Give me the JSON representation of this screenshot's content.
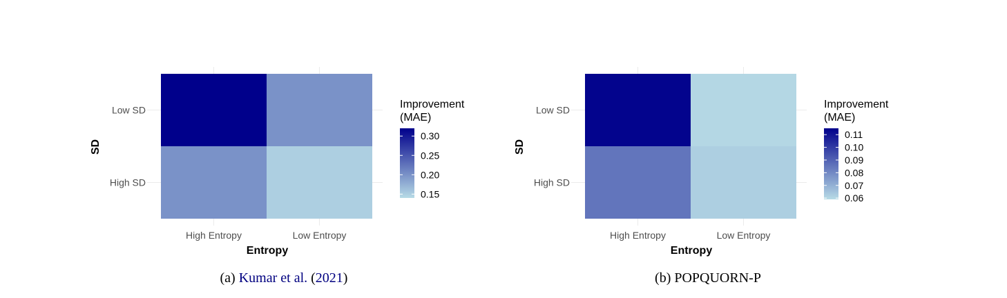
{
  "chart_data": [
    {
      "type": "heatmap",
      "caption": {
        "prefix": "(a) ",
        "author": "Kumar et al.",
        "year_open": " (",
        "year": "2021",
        "year_close": ")"
      },
      "xlabel": "Entropy",
      "ylabel": "SD",
      "x_categories": [
        "High Entropy",
        "Low Entropy"
      ],
      "y_categories": [
        "Low SD",
        "High SD"
      ],
      "values": [
        [
          0.32,
          0.2
        ],
        [
          0.2,
          0.15
        ]
      ],
      "legend": {
        "title_line1": "Improvement",
        "title_line2": "(MAE)",
        "min": 0.14,
        "max": 0.32,
        "ticks": [
          0.3,
          0.25,
          0.2,
          0.15
        ],
        "tick_labels": [
          "0.30",
          "0.25",
          "0.20",
          "0.15"
        ]
      },
      "color_low": "#b7dbe6",
      "color_high": "#00008b"
    },
    {
      "type": "heatmap",
      "caption": {
        "prefix": "(b) ",
        "name": "POPQUORN-P"
      },
      "xlabel": "Entropy",
      "ylabel": "SD",
      "x_categories": [
        "High Entropy",
        "Low Entropy"
      ],
      "y_categories": [
        "Low SD",
        "High SD"
      ],
      "values": [
        [
          0.114,
          0.06
        ],
        [
          0.085,
          0.062
        ]
      ],
      "legend": {
        "title_line1": "Improvement",
        "title_line2": "(MAE)",
        "min": 0.059,
        "max": 0.115,
        "ticks": [
          0.11,
          0.1,
          0.09,
          0.08,
          0.07,
          0.06
        ],
        "tick_labels": [
          "0.11",
          "0.10",
          "0.09",
          "0.08",
          "0.07",
          "0.06"
        ]
      },
      "color_low": "#b7dbe6",
      "color_high": "#00008b"
    }
  ]
}
